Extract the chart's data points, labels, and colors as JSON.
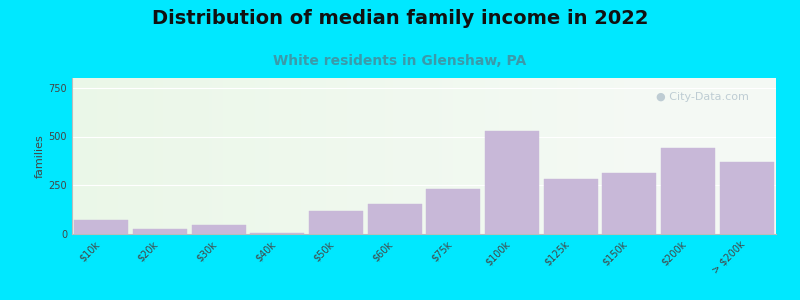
{
  "title": "Distribution of median family income in 2022",
  "subtitle": "White residents in Glenshaw, PA",
  "ylabel": "families",
  "categories": [
    "$10k",
    "$20k",
    "$30k",
    "$40k",
    "$50k",
    "$60k",
    "$75k",
    "$100k",
    "$125k",
    "$150k",
    "$200k",
    "> $200k"
  ],
  "values": [
    70,
    25,
    45,
    5,
    120,
    155,
    230,
    530,
    280,
    315,
    440,
    370
  ],
  "bar_color": "#c8b8d8",
  "bar_edgecolor": "#c8b8d8",
  "background_outer": "#00e8ff",
  "title_fontsize": 14,
  "title_fontweight": "bold",
  "subtitle_fontsize": 10,
  "subtitle_color": "#3a9aaa",
  "ylabel_fontsize": 8,
  "tick_fontsize": 7,
  "yticks": [
    0,
    250,
    500,
    750
  ],
  "ylim": [
    0,
    800
  ],
  "watermark": "City-Data.com",
  "watermark_color": "#b8c8d0",
  "watermark_fontsize": 8
}
